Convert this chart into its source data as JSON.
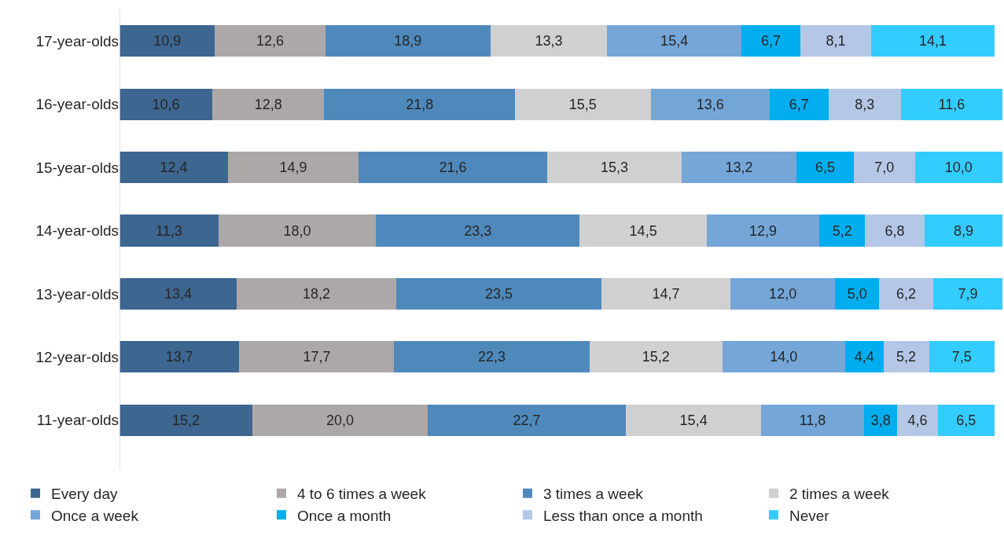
{
  "chart_data": {
    "type": "bar",
    "orientation": "horizontal",
    "stacked": true,
    "legend": "bottom",
    "tick_labels": "y",
    "categories": [
      "17-year-olds",
      "16-year-olds",
      "15-year-olds",
      "14-year-olds",
      "13-year-olds",
      "12-year-olds",
      "11-year-olds"
    ],
    "series": [
      {
        "name": "Every day",
        "color": "#3d6690",
        "values": [
          10.9,
          10.6,
          12.4,
          11.3,
          13.4,
          13.7,
          15.2
        ],
        "value_labels": [
          "10,9",
          "10,6",
          "12,4",
          "11,3",
          "13,4",
          "13,7",
          "15,2"
        ]
      },
      {
        "name": "4 to 6 times a week",
        "color": "#aca8a7",
        "values": [
          12.6,
          12.8,
          14.9,
          18.0,
          18.2,
          17.7,
          20.0
        ],
        "value_labels": [
          "12,6",
          "12,8",
          "14,9",
          "18,0",
          "18,2",
          "17,7",
          "20,0"
        ]
      },
      {
        "name": "3 times a week",
        "color": "#4f89bc",
        "values": [
          18.9,
          21.8,
          21.6,
          23.3,
          23.5,
          22.3,
          22.7
        ],
        "value_labels": [
          "18,9",
          "21,8",
          "21,6",
          "23,3",
          "23,5",
          "22,3",
          "22,7"
        ]
      },
      {
        "name": "2 times a week",
        "color": "#d1d0d1",
        "values": [
          13.3,
          15.5,
          15.3,
          14.5,
          14.7,
          15.2,
          15.4
        ],
        "value_labels": [
          "13,3",
          "15,5",
          "15,3",
          "14,5",
          "14,7",
          "15,2",
          "15,4"
        ]
      },
      {
        "name": "Once a week",
        "color": "#74a6d8",
        "values": [
          15.4,
          13.6,
          13.2,
          12.9,
          12.0,
          14.0,
          11.8
        ],
        "value_labels": [
          "15,4",
          "13,6",
          "13,2",
          "12,9",
          "12,0",
          "14,0",
          "11,8"
        ]
      },
      {
        "name": "Once a month",
        "color": "#00aeef",
        "values": [
          6.7,
          6.7,
          6.5,
          5.2,
          5.0,
          4.4,
          3.8
        ],
        "value_labels": [
          "6,7",
          "6,7",
          "6,5",
          "5,2",
          "5,0",
          "4,4",
          "3,8"
        ]
      },
      {
        "name": "Less than once a month",
        "color": "#b4c7e7",
        "values": [
          8.1,
          8.3,
          7.0,
          6.8,
          6.2,
          5.2,
          4.6
        ],
        "value_labels": [
          "8,1",
          "8,3",
          "7,0",
          "6,8",
          "6,2",
          "5,2",
          "4,6"
        ]
      },
      {
        "name": "Never",
        "color": "#33ccff",
        "values": [
          14.1,
          11.6,
          10.0,
          8.9,
          7.9,
          7.5,
          6.5
        ],
        "value_labels": [
          "14,1",
          "11,6",
          "10,0",
          "8,9",
          "7,9",
          "7,5",
          "6,5"
        ]
      }
    ]
  }
}
